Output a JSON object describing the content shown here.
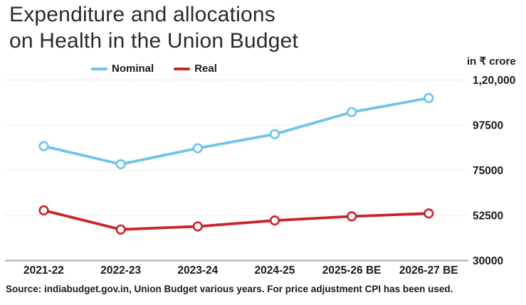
{
  "header": {
    "title_line1": "Expenditure and allocations",
    "title_line2": "on Health in the Union Budget"
  },
  "unit_label": "in ₹ crore",
  "source": "Source: indiabudget.gov.in, Union Budget various years. For price adjustment CPI has been used.",
  "colors": {
    "nominal": "#6ec5e8",
    "real": "#c9232b",
    "gridline": "#c9c9c9",
    "axis_line": "#a8a8a8",
    "text": "#1a1a1a"
  },
  "chart_data": {
    "type": "line",
    "title": "Expenditure and allocations on Health in the Union Budget",
    "unit": "in ₹ crore",
    "categories": [
      "2021-22",
      "2022-23",
      "2023-24",
      "2024-25",
      "2025-26 BE",
      "2026-27 BE"
    ],
    "series": [
      {
        "name": "Nominal",
        "color": "#6ec5e8",
        "values": [
          87000,
          78000,
          86000,
          93000,
          104000,
          111000
        ]
      },
      {
        "name": "Real",
        "color": "#c9232b",
        "values": [
          55000,
          45500,
          47000,
          50000,
          52000,
          53500
        ]
      }
    ],
    "y_ticks": [
      {
        "value": 120000,
        "label": "1,20,000"
      },
      {
        "value": 97500,
        "label": "97500"
      },
      {
        "value": 75000,
        "label": "75000"
      },
      {
        "value": 52500,
        "label": "52500"
      },
      {
        "value": 30000,
        "label": "30000"
      }
    ],
    "ylim": [
      30000,
      120000
    ],
    "grid": "horizontal-dotted",
    "marker": "open-circle",
    "legend_position": "top"
  }
}
